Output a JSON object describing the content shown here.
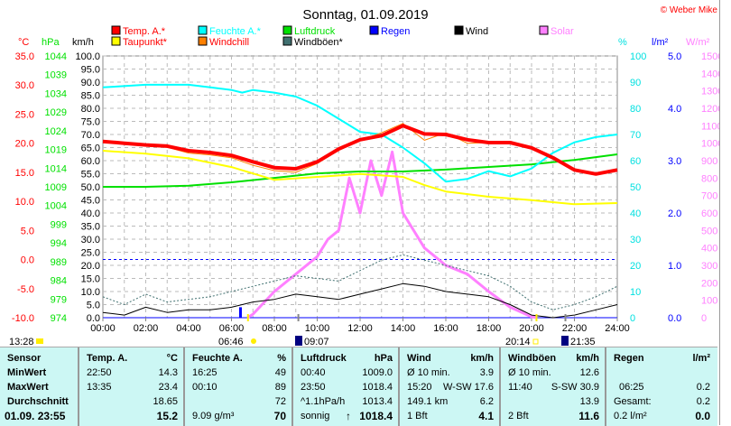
{
  "header": {
    "title": "Sonntag, 01.09.2019",
    "copyright": "© Weber Mike"
  },
  "legend": [
    {
      "label": "Temp. A.*",
      "color": "#ff0000"
    },
    {
      "label": "Feuchte A.*",
      "color": "#00ffff"
    },
    {
      "label": "Luftdruck",
      "color": "#00e000"
    },
    {
      "label": "Regen",
      "color": "#0000ff"
    },
    {
      "label": "Wind",
      "color": "#000000"
    },
    {
      "label": "Solar",
      "color": "#ff80ff"
    },
    {
      "label": "Taupunkt*",
      "color": "#ffff00"
    },
    {
      "label": "Windchill",
      "color": "#ff8000"
    },
    {
      "label": "Windböen*",
      "color": "#407070"
    }
  ],
  "axes": {
    "temp_unit": "°C",
    "hpa_unit": "hPa",
    "kmh_unit": "km/h",
    "pct_unit": "%",
    "rain_unit": "l/m²",
    "solar_unit": "W/m²"
  },
  "markers": {
    "now": "13:28",
    "sunrise": "06:46",
    "moonrise": "09:07",
    "sunset": "20:14",
    "moonset": "21:35"
  },
  "chart_data": {
    "type": "line",
    "title": "Sonntag, 01.09.2019",
    "x_ticks": [
      "00:00",
      "02:00",
      "04:00",
      "06:00",
      "08:00",
      "10:00",
      "12:00",
      "14:00",
      "16:00",
      "18:00",
      "20:00",
      "22:00",
      "24:00"
    ],
    "xlim": [
      0,
      24
    ],
    "axes": {
      "temp": {
        "range": [
          -10,
          35
        ],
        "ticks": [
          "35.0",
          "30.0",
          "25.0",
          "20.0",
          "15.0",
          "10.0",
          "5.0",
          "0.0",
          "-5.0",
          "-10.0"
        ]
      },
      "hpa": {
        "range": [
          974,
          1044
        ],
        "ticks": [
          "1044",
          "1039",
          "1034",
          "1029",
          "1024",
          "1019",
          "1014",
          "1009",
          "1004",
          "999",
          "994",
          "989",
          "984",
          "979",
          "974"
        ]
      },
      "kmh": {
        "range": [
          0,
          100
        ],
        "ticks": [
          "100.0",
          "95.0",
          "90.0",
          "85.0",
          "80.0",
          "75.0",
          "70.0",
          "65.0",
          "60.0",
          "55.0",
          "50.0",
          "45.0",
          "40.0",
          "35.0",
          "30.0",
          "25.0",
          "20.0",
          "15.0",
          "10.0",
          "5.0",
          "0.0"
        ]
      },
      "pct": {
        "range": [
          0,
          100
        ],
        "ticks": [
          "100",
          "90",
          "80",
          "70",
          "60",
          "50",
          "40",
          "30",
          "20",
          "10",
          "0"
        ]
      },
      "rain": {
        "range": [
          0,
          5
        ],
        "ticks": [
          "5.0",
          "4.0",
          "3.0",
          "2.0",
          "1.0",
          "0.0"
        ]
      },
      "solar": {
        "range": [
          0,
          1500
        ],
        "ticks": [
          "1500",
          "1400",
          "1300",
          "1200",
          "1100",
          "1000",
          "900",
          "800",
          "700",
          "600",
          "500",
          "400",
          "300",
          "200",
          "100",
          "0"
        ]
      }
    },
    "series": [
      {
        "name": "Temp. A.*",
        "axis": "temp",
        "color": "#ff0000",
        "width": 4,
        "x": [
          0,
          1,
          2,
          3,
          4,
          5,
          6,
          7,
          8,
          9,
          10,
          11,
          12,
          13,
          14,
          15,
          16,
          17,
          18,
          19,
          20,
          21,
          22,
          23,
          24
        ],
        "y": [
          20.3,
          20.0,
          19.7,
          19.5,
          18.7,
          18.4,
          17.9,
          16.8,
          15.8,
          15.6,
          16.8,
          19.0,
          20.6,
          21.3,
          23.0,
          21.6,
          21.5,
          20.6,
          20.1,
          20.1,
          19.2,
          17.5,
          15.4,
          14.7,
          15.4
        ]
      },
      {
        "name": "Windchill",
        "axis": "temp",
        "color": "#ff8000",
        "width": 1,
        "x": [
          0,
          1,
          2,
          3,
          4,
          5,
          6,
          7,
          8,
          9,
          10,
          11,
          12,
          13,
          14,
          15,
          16,
          17,
          18,
          19,
          20,
          21,
          22,
          23,
          24
        ],
        "y": [
          20.3,
          20.0,
          19.5,
          19.3,
          18.3,
          18.0,
          17.5,
          16.2,
          15.3,
          15.0,
          16.5,
          18.8,
          20.5,
          21.8,
          23.4,
          20.5,
          21.8,
          20.0,
          20.1,
          20.0,
          19.2,
          17.5,
          15.4,
          14.7,
          15.4
        ]
      },
      {
        "name": "Feuchte A.*",
        "axis": "pct",
        "color": "#00ffff",
        "width": 2,
        "x": [
          0,
          2,
          4,
          5,
          6,
          6.5,
          7,
          8,
          9,
          10,
          11,
          12,
          13,
          14,
          15,
          16,
          17,
          18,
          19,
          20,
          21,
          22,
          23,
          24
        ],
        "y": [
          88,
          89,
          89,
          88,
          87,
          86,
          87,
          86,
          84.5,
          81,
          76,
          71,
          70,
          65,
          59,
          52,
          53,
          56,
          54,
          57,
          63,
          67,
          69,
          70
        ]
      },
      {
        "name": "Taupunkt*",
        "axis": "temp",
        "color": "#ffff00",
        "width": 2,
        "x": [
          0,
          2,
          4,
          6,
          8,
          10,
          12,
          14,
          15,
          16,
          18,
          20,
          22,
          24
        ],
        "y": [
          18.7,
          18.2,
          17.4,
          15.9,
          13.7,
          14.2,
          14.7,
          14.2,
          12.8,
          11.7,
          10.8,
          10.2,
          9.5,
          9.7
        ]
      },
      {
        "name": "Luftdruck",
        "axis": "hpa",
        "color": "#00e000",
        "width": 2,
        "x": [
          0,
          2,
          4,
          6,
          8,
          10,
          12,
          14,
          16,
          18,
          20,
          22,
          24
        ],
        "y": [
          1009.0,
          1009.0,
          1009.3,
          1010.2,
          1011.4,
          1012.6,
          1013.1,
          1013.1,
          1013.6,
          1014.3,
          1015.0,
          1016.2,
          1017.7
        ]
      },
      {
        "name": "Windböen*",
        "axis": "kmh",
        "color": "#407070",
        "width": 1,
        "dash": "2,2",
        "x": [
          0,
          1,
          2,
          3,
          4,
          5,
          6,
          7,
          8,
          9,
          10,
          11,
          12,
          13,
          14,
          15,
          16,
          17,
          18,
          19,
          20,
          21,
          22,
          23,
          24
        ],
        "y": [
          8,
          5,
          9,
          6,
          7,
          8,
          10,
          12,
          14,
          16,
          15,
          14,
          18,
          22,
          24,
          22,
          20,
          18,
          16,
          12,
          6,
          3,
          5,
          8,
          12
        ]
      },
      {
        "name": "Wind",
        "axis": "kmh",
        "color": "#000000",
        "width": 1,
        "x": [
          0,
          1,
          2,
          3,
          4,
          5,
          6,
          7,
          8,
          9,
          10,
          11,
          12,
          13,
          14,
          15,
          16,
          17,
          18,
          19,
          20,
          21,
          22,
          23,
          24
        ],
        "y": [
          2,
          1,
          4,
          2,
          3,
          3,
          4,
          6,
          7,
          9,
          8,
          7,
          9,
          11,
          13,
          12,
          10,
          9,
          8,
          5,
          1,
          0,
          1,
          3,
          5
        ]
      },
      {
        "name": "Solar",
        "axis": "solar",
        "color": "#ff80ff",
        "width": 3,
        "x": [
          6.75,
          7,
          8,
          9,
          10,
          10.5,
          11,
          11.5,
          12,
          12.5,
          13,
          13.5,
          14,
          15,
          16,
          17,
          18,
          19,
          20,
          20.25
        ],
        "y": [
          0,
          20,
          150,
          250,
          350,
          450,
          500,
          800,
          600,
          900,
          700,
          950,
          600,
          400,
          300,
          250,
          150,
          60,
          5,
          0
        ]
      },
      {
        "name": "Regen",
        "axis": "rain",
        "color": "#0000ff",
        "type": "bar",
        "x": [
          6.42
        ],
        "y": [
          0.2
        ]
      }
    ]
  },
  "table": {
    "sensor": {
      "header": "Sensor",
      "rows": [
        "MinWert",
        "MaxWert",
        "Durchschnitt",
        "01.09. 23:55"
      ]
    },
    "temp": {
      "header": "Temp. A.",
      "unit": "°C",
      "min_time": "22:50",
      "min": "14.3",
      "max_time": "13:35",
      "max": "23.4",
      "avg": "18.65",
      "current": "15.2"
    },
    "hum": {
      "header": "Feuchte A.",
      "unit": "%",
      "min_time": "16:25",
      "min": "49",
      "max_time": "00:10",
      "max": "89",
      "avg": "72",
      "abs": "9.09 g/m³",
      "current": "70"
    },
    "press": {
      "header": "Luftdruck",
      "unit": "hPa",
      "min_time": "00:40",
      "min": "1009.0",
      "max_time": "23:50",
      "max": "1018.4",
      "trend": "^1.1hPa/h",
      "avg": "1013.4",
      "forecast": "sonnig",
      "arrow": "↑",
      "current": "1018.4"
    },
    "wind": {
      "header": "Wind",
      "unit": "km/h",
      "avg_label": "Ø 10 min.",
      "avg10": "3.9",
      "max_time": "15:20",
      "max": "W-SW 17.6",
      "run": "149.1 km",
      "avg": "6.2",
      "bft": "1 Bft",
      "current": "4.1"
    },
    "gust": {
      "header": "Windböen",
      "unit": "km/h",
      "avg_label": "Ø 10 min.",
      "avg10": "12.6",
      "max_time": "11:40",
      "max": "S-SW 30.9",
      "avg": "13.9",
      "bft": "2 Bft",
      "current": "11.6"
    },
    "rain": {
      "header": "Regen",
      "unit": "l/m²",
      "max_time": "06:25",
      "max": "0.2",
      "total_label": "Gesamt:",
      "total": "0.2",
      "rate": "0.2 l/m²",
      "current": "0.0"
    }
  }
}
